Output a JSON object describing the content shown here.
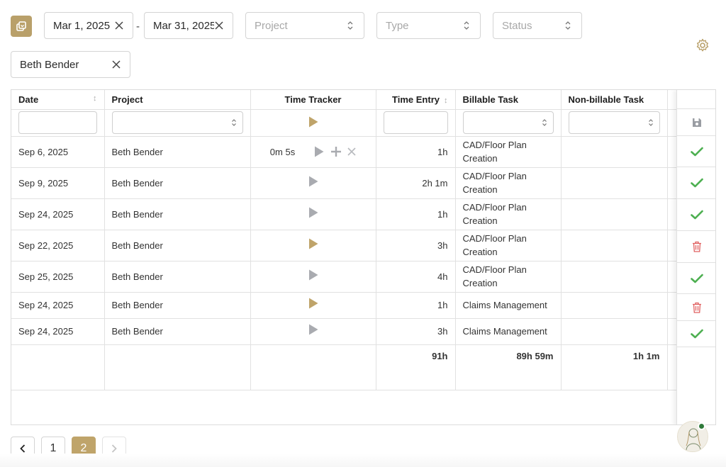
{
  "filters": {
    "date_from": "Mar 1, 2025",
    "date_to": "Mar 31, 2025",
    "project_placeholder": "Project",
    "type_placeholder": "Type",
    "status_placeholder": "Status",
    "user": "Beth Bender",
    "dash": "-"
  },
  "table": {
    "headers": {
      "date": "Date",
      "project": "Project",
      "time_tracker": "Time Tracker",
      "time_entry": "Time Entry",
      "billable_task": "Billable Task",
      "nonbillable_task": "Non-billable Task"
    },
    "rows": [
      {
        "date": "Sep 6, 2025",
        "project": "Beth Bender",
        "tracker_time": "0m 5s",
        "time_entry": "1h",
        "billable": "CAD/Floor Plan Creation",
        "nonbillable": "",
        "status": "approved",
        "play_color": "grey"
      },
      {
        "date": "Sep 9, 2025",
        "project": "Beth Bender",
        "tracker_time": "",
        "time_entry": "2h 1m",
        "billable": "CAD/Floor Plan Creation",
        "nonbillable": "",
        "status": "approved",
        "play_color": "grey"
      },
      {
        "date": "Sep 24, 2025",
        "project": "Beth Bender",
        "tracker_time": "",
        "time_entry": "1h",
        "billable": "CAD/Floor Plan Creation",
        "nonbillable": "",
        "status": "approved",
        "play_color": "grey"
      },
      {
        "date": "Sep 22, 2025",
        "project": "Beth Bender",
        "tracker_time": "",
        "time_entry": "3h",
        "billable": "CAD/Floor Plan Creation",
        "nonbillable": "",
        "status": "delete",
        "play_color": "gold"
      },
      {
        "date": "Sep 25, 2025",
        "project": "Beth Bender",
        "tracker_time": "",
        "time_entry": "4h",
        "billable": "CAD/Floor Plan Creation",
        "nonbillable": "",
        "status": "approved",
        "play_color": "grey"
      },
      {
        "date": "Sep 24, 2025",
        "project": "Beth Bender",
        "tracker_time": "",
        "time_entry": "1h",
        "billable": "Claims Management",
        "nonbillable": "",
        "status": "delete",
        "play_color": "gold"
      },
      {
        "date": "Sep 24, 2025",
        "project": "Beth Bender",
        "tracker_time": "",
        "time_entry": "3h",
        "billable": "Claims Management",
        "nonbillable": "",
        "status": "approved",
        "play_color": "grey"
      }
    ],
    "totals": {
      "time_entry": "91h",
      "billable": "89h 59m",
      "nonbillable": "1h 1m"
    }
  },
  "pagination": {
    "pages": [
      "1",
      "2"
    ],
    "current": "2"
  },
  "colors": {
    "accent": "#bfa46a",
    "approved": "#4caf50",
    "delete": "#e06060",
    "play_grey": "#a9abb0"
  }
}
